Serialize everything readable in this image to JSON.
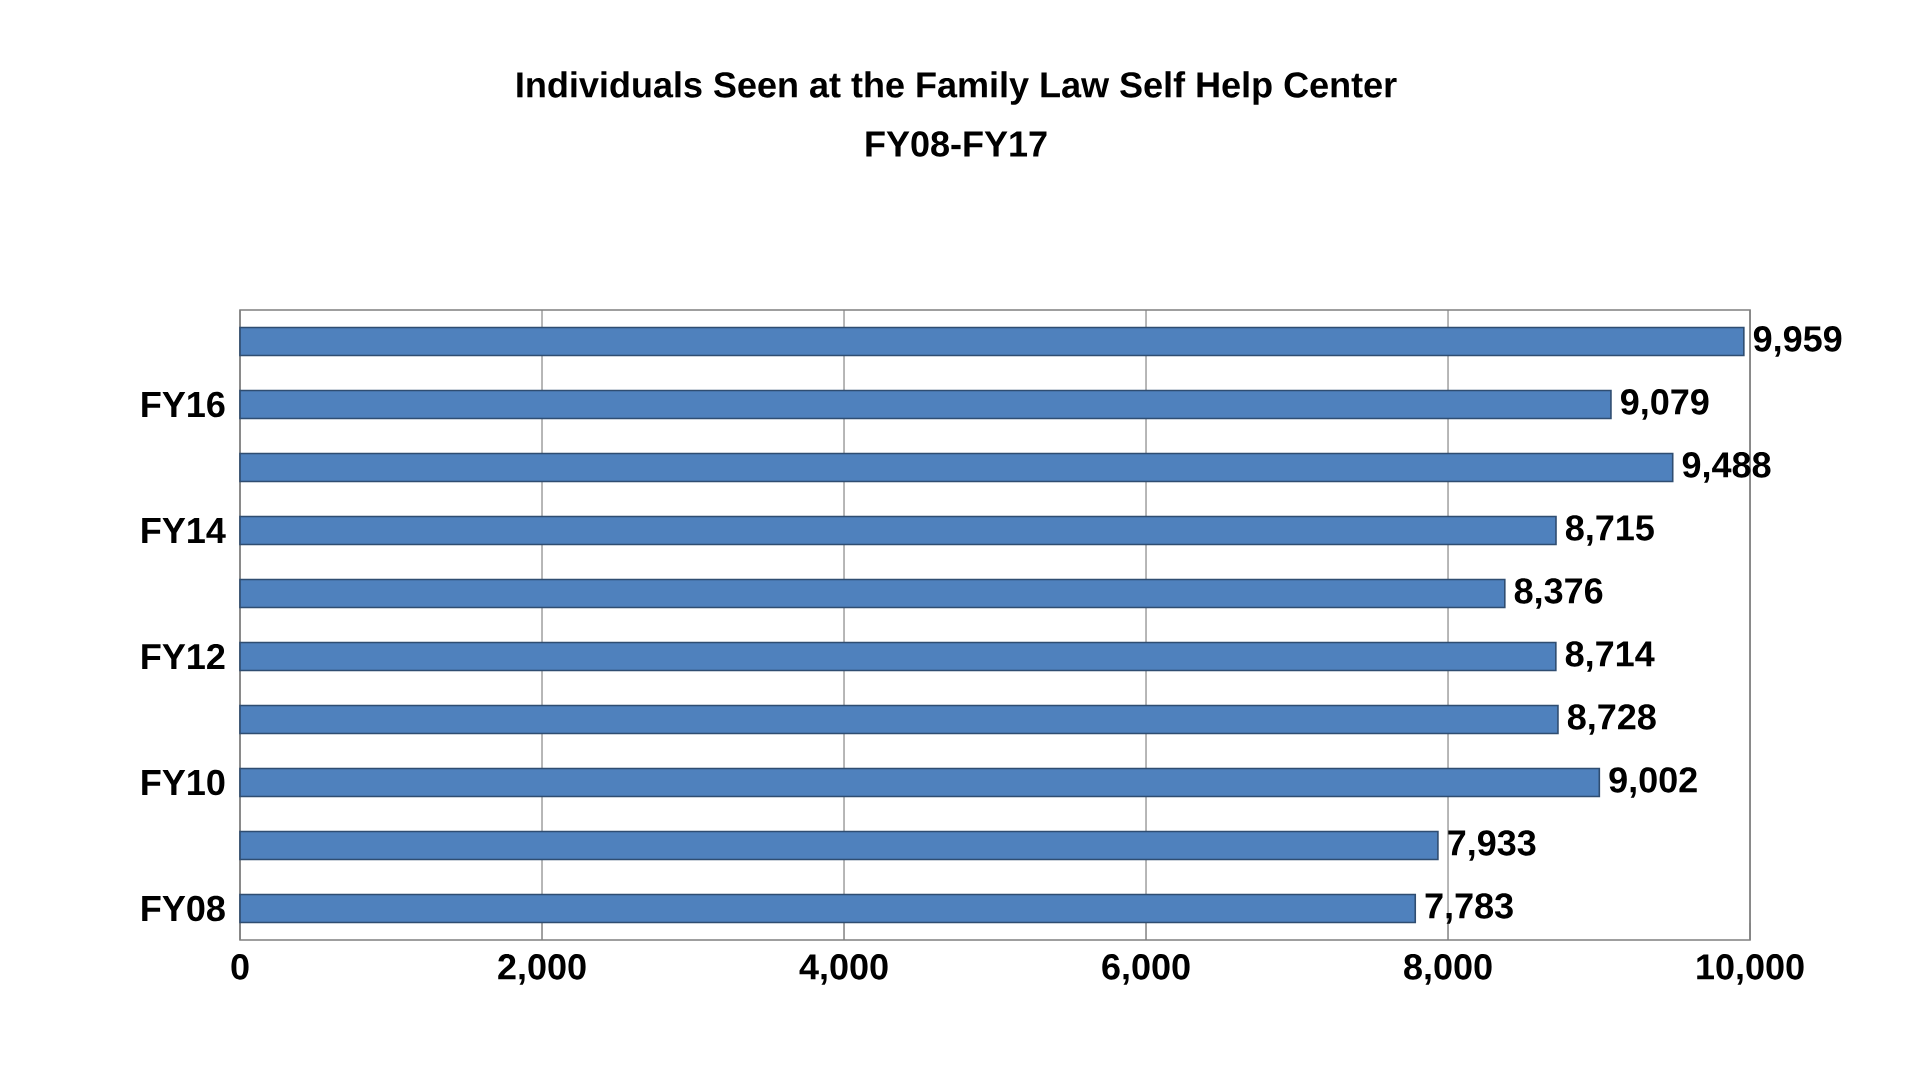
{
  "chart_data": {
    "type": "bar",
    "orientation": "horizontal",
    "title": "Individuals Seen at the Family Law Self Help Center",
    "subtitle": "FY08-FY17",
    "categories": [
      null,
      "FY16",
      null,
      "FY14",
      null,
      "FY12",
      null,
      "FY10",
      null,
      "FY08"
    ],
    "values": [
      9959,
      9079,
      9488,
      8715,
      8376,
      8714,
      8728,
      9002,
      7933,
      7783
    ],
    "value_labels": [
      "9,959",
      "9,079",
      "9,488",
      "8,715",
      "8,376",
      "8,714",
      "8,728",
      "9,002",
      "7,933",
      "7,783"
    ],
    "color": "#4f81bd",
    "xlim": [
      0,
      10000
    ],
    "xticks": [
      {
        "value": 0,
        "label": "0"
      },
      {
        "value": 2000,
        "label": "2,000"
      },
      {
        "value": 4000,
        "label": "4,000"
      },
      {
        "value": 6000,
        "label": "6,000"
      },
      {
        "value": 8000,
        "label": "8,000"
      },
      {
        "value": 10000,
        "label": "10,000"
      }
    ],
    "grid": "x"
  }
}
